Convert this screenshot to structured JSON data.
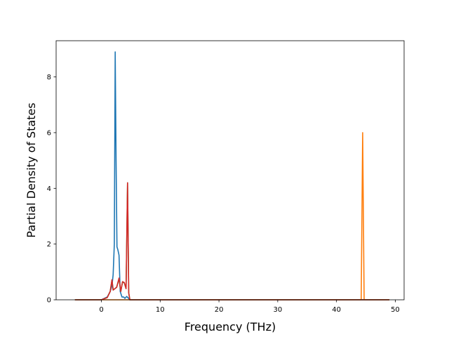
{
  "chart_data": {
    "type": "line",
    "title": "",
    "xlabel": "Frequency (THz)",
    "ylabel": "Partial Density of States",
    "xlim": [
      -7.7,
      51.5
    ],
    "ylim": [
      0,
      9.3
    ],
    "xticks": [
      0,
      10,
      20,
      30,
      40,
      50
    ],
    "xtick_labels": [
      "0",
      "10",
      "20",
      "30",
      "40",
      "50"
    ],
    "yticks": [
      0,
      2,
      4,
      6,
      8
    ],
    "ytick_labels": [
      "0",
      "2",
      "4",
      "6",
      "8"
    ],
    "grid": false,
    "legend": false,
    "series": [
      {
        "color": "#1f77b4",
        "x": [
          -4.5,
          0,
          1.0,
          1.5,
          1.8,
          2.0,
          2.2,
          2.35,
          2.5,
          2.65,
          2.8,
          3.0,
          3.2,
          3.5,
          3.8,
          4.0,
          4.3,
          4.6,
          4.8,
          5.0,
          49
        ],
        "y": [
          0,
          0,
          0.1,
          0.3,
          0.5,
          0.9,
          2.0,
          8.9,
          5.0,
          1.9,
          1.8,
          1.6,
          0.3,
          0.1,
          0.1,
          0.05,
          0.12,
          0.06,
          0,
          0,
          0
        ]
      },
      {
        "color": "#ff7f0e",
        "x": [
          -4.5,
          43.9,
          44.2,
          44.45,
          44.7,
          45.0,
          49
        ],
        "y": [
          0,
          0,
          0,
          6.0,
          0,
          0,
          0
        ]
      },
      {
        "color": "#2ca02c",
        "x": [
          -4.5,
          0,
          1.0,
          1.5,
          1.8,
          2.0,
          2.3,
          2.6,
          3.0,
          3.3,
          3.6,
          3.9,
          4.2,
          4.45,
          4.65,
          4.85,
          5.0,
          49
        ],
        "y": [
          0,
          0,
          0.08,
          0.3,
          0.7,
          0.35,
          0.4,
          0.45,
          0.75,
          0.3,
          0.65,
          0.6,
          0.4,
          4.2,
          0.25,
          0,
          0,
          0
        ]
      },
      {
        "color": "#d62728",
        "x": [
          -4.5,
          0,
          1.0,
          1.5,
          1.8,
          2.0,
          2.3,
          2.6,
          3.0,
          3.3,
          3.6,
          3.9,
          4.2,
          4.45,
          4.65,
          4.85,
          5.0,
          49
        ],
        "y": [
          0,
          0,
          0.08,
          0.3,
          0.72,
          0.35,
          0.4,
          0.45,
          0.78,
          0.3,
          0.65,
          0.62,
          0.4,
          4.2,
          0.25,
          0,
          0,
          0
        ]
      }
    ]
  }
}
